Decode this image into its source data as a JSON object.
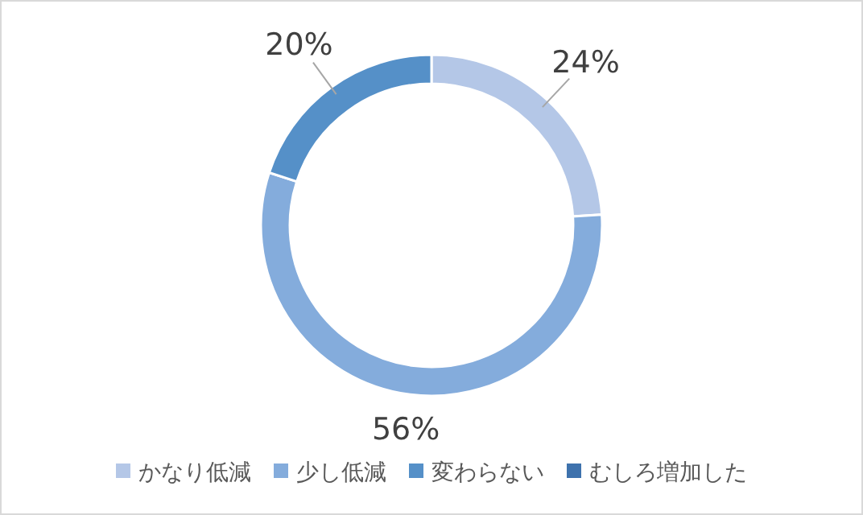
{
  "chart_data": {
    "type": "donut",
    "categories": [
      "かなり低減",
      "少し低減",
      "変わらない",
      "むしろ増加した"
    ],
    "values": [
      24,
      56,
      20,
      0
    ],
    "colors": [
      "#b4c7e7",
      "#84acdc",
      "#5590c8",
      "#3e72ad"
    ],
    "value_labels": [
      "24%",
      "56%",
      "20%",
      null
    ],
    "legend": "bottom"
  }
}
